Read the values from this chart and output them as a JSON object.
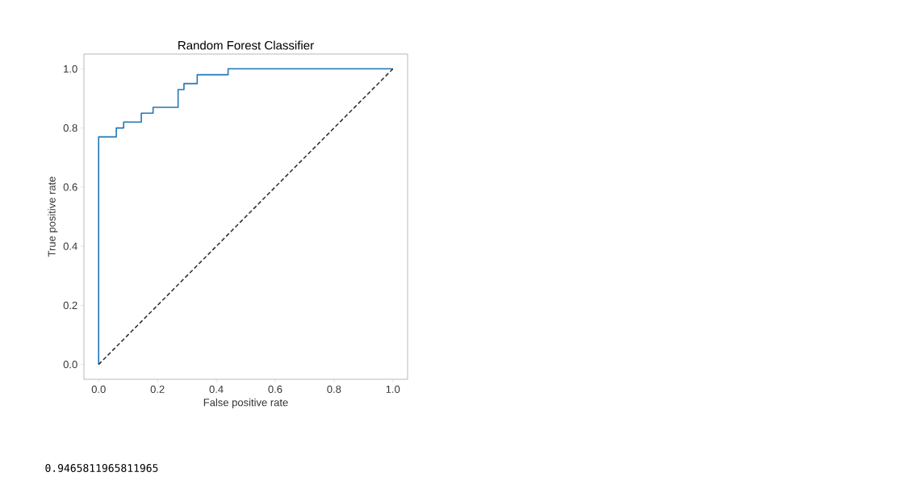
{
  "chart_data": {
    "type": "line",
    "title": "Random Forest Classifier",
    "xlabel": "False positive rate",
    "ylabel": "True positive rate",
    "annotations": [
      "0.9465811965811965"
    ],
    "series": [
      {
        "x": [
          0,
          0,
          0.06,
          0.06,
          0.085,
          0.085,
          0.145,
          0.145,
          0.185,
          0.185,
          0.27,
          0.27,
          0.29,
          0.29,
          0.335,
          0.335,
          0.44,
          0.44,
          1
        ],
        "values": [
          0,
          0.77,
          0.77,
          0.8,
          0.8,
          0.82,
          0.82,
          0.85,
          0.85,
          0.87,
          0.87,
          0.93,
          0.93,
          0.95,
          0.95,
          0.98,
          0.98,
          1,
          1
        ],
        "color": "#1f77b4",
        "line_style": "solid"
      },
      {
        "x": [
          0,
          1
        ],
        "values": [
          0,
          1
        ],
        "color": "#333333",
        "line_style": "dashed"
      }
    ],
    "xlim": [
      -0.05,
      1.05
    ],
    "ylim": [
      -0.05,
      1.05
    ],
    "xticks": [
      {
        "value": 0,
        "label": "0.0"
      },
      0.2,
      0.4,
      0.6,
      0.8,
      {
        "value": 1,
        "label": "1.0"
      }
    ],
    "yticks": [
      {
        "value": 0,
        "label": "0.0"
      },
      0.2,
      0.4,
      0.6,
      0.8,
      {
        "value": 1,
        "label": "1.0"
      }
    ],
    "grid": false,
    "marker": "none"
  }
}
